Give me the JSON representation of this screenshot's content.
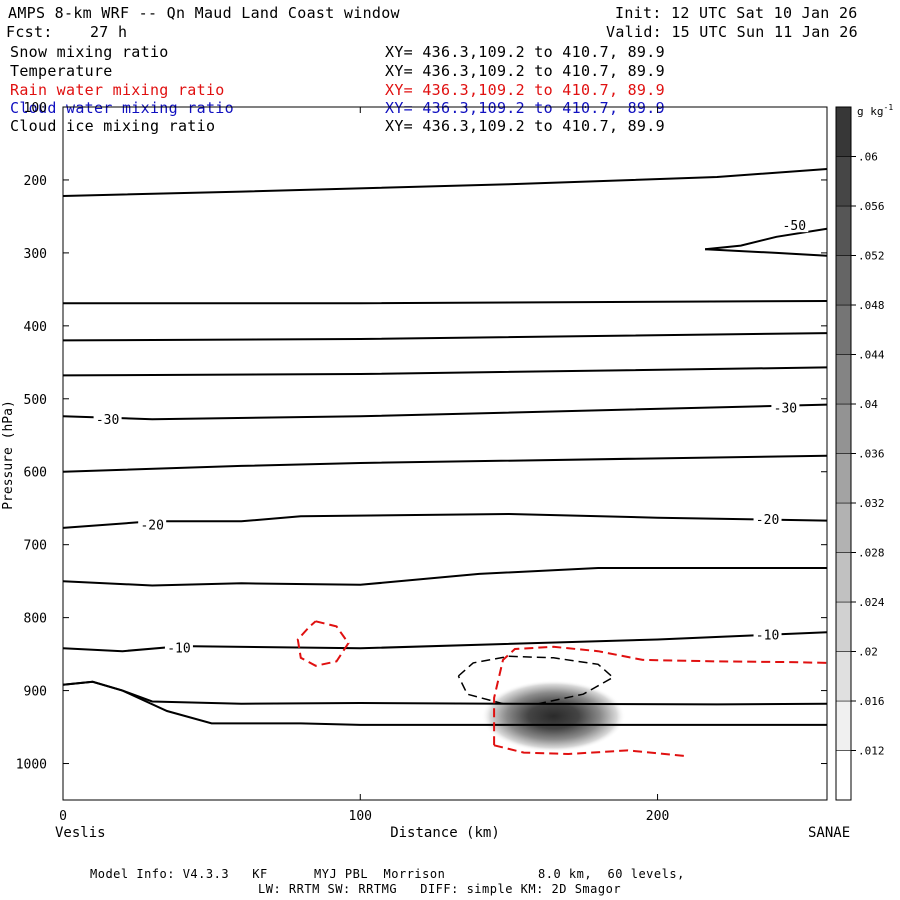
{
  "header": {
    "title": "AMPS 8-km WRF -- Qn Maud Land Coast window",
    "init": "Init: 12 UTC Sat 10 Jan 26",
    "fcst": "Fcst:    27 h",
    "valid": "Valid: 15 UTC Sun 11 Jan 26"
  },
  "fields": [
    {
      "name": "Snow mixing ratio",
      "xy": "XY= 436.3,109.2 to 410.7, 89.9",
      "color": "#000000"
    },
    {
      "name": "Temperature",
      "xy": "XY= 436.3,109.2 to 410.7, 89.9",
      "color": "#000000"
    },
    {
      "name": "Rain water mixing ratio",
      "xy": "XY= 436.3,109.2 to 410.7, 89.9",
      "color": "#e01010"
    },
    {
      "name": "Cloud water mixing ratio",
      "xy": "XY= 436.3,109.2 to 410.7, 89.9",
      "color": "#1010c0"
    },
    {
      "name": "Cloud ice mixing ratio",
      "xy": "XY= 436.3,109.2 to 410.7, 89.9",
      "color": "#000000"
    }
  ],
  "footer": {
    "line1": "Model Info: V4.3.3   KF      MYJ PBL  Morrison            8.0 km,  60 levels,",
    "line2": "LW: RRTM SW: RRTMG   DIFF: simple KM: 2D Smagor"
  },
  "chart_data": {
    "type": "contour cross-section",
    "xlabel": "Distance (km)",
    "ylabel": "Pressure (hPa)",
    "xlim": [
      0,
      257
    ],
    "ylim": [
      1050,
      100
    ],
    "x_ticks": [
      0,
      100,
      200
    ],
    "y_ticks": [
      100,
      200,
      300,
      400,
      500,
      600,
      700,
      800,
      900,
      1000
    ],
    "x_endpoints": {
      "left": "Veslis",
      "right": "SANAE"
    },
    "colorbar": {
      "unit": "g kg",
      "unit_exp": "-1",
      "levels": [
        ".012",
        ".016",
        ".02",
        ".024",
        ".028",
        ".032",
        ".036",
        ".04",
        ".044",
        ".048",
        ".052",
        ".056",
        ".06"
      ]
    },
    "temperature_contour_labels": [
      {
        "text": "-50",
        "x": 246,
        "p": 262
      },
      {
        "text": "-30",
        "x": 15,
        "p": 528
      },
      {
        "text": "-30",
        "x": 243,
        "p": 512
      },
      {
        "text": "-20",
        "x": 30,
        "p": 672
      },
      {
        "text": "-20",
        "x": 237,
        "p": 665
      },
      {
        "text": "-10",
        "x": 39,
        "p": 841
      },
      {
        "text": "-10",
        "x": 237,
        "p": 823
      }
    ],
    "temperature_lines": [
      [
        [
          0,
          222
        ],
        [
          60,
          216
        ],
        [
          150,
          206
        ],
        [
          220,
          196
        ],
        [
          257,
          185
        ]
      ],
      [
        [
          216,
          295
        ],
        [
          228,
          290
        ],
        [
          240,
          278
        ],
        [
          257,
          267
        ]
      ],
      [
        [
          216,
          295
        ],
        [
          240,
          300
        ],
        [
          257,
          304
        ]
      ],
      [
        [
          0,
          369
        ],
        [
          100,
          369
        ],
        [
          257,
          366
        ]
      ],
      [
        [
          0,
          420
        ],
        [
          100,
          418
        ],
        [
          257,
          410
        ]
      ],
      [
        [
          0,
          468
        ],
        [
          100,
          466
        ],
        [
          257,
          457
        ]
      ],
      [
        [
          0,
          524
        ],
        [
          30,
          528
        ],
        [
          100,
          524
        ],
        [
          257,
          508
        ]
      ],
      [
        [
          0,
          600
        ],
        [
          60,
          592
        ],
        [
          100,
          588
        ],
        [
          257,
          578
        ]
      ],
      [
        [
          0,
          677
        ],
        [
          30,
          668
        ],
        [
          60,
          668
        ],
        [
          80,
          661
        ],
        [
          150,
          658
        ],
        [
          200,
          663
        ],
        [
          257,
          667
        ]
      ],
      [
        [
          0,
          750
        ],
        [
          30,
          756
        ],
        [
          60,
          753
        ],
        [
          100,
          755
        ],
        [
          140,
          740
        ],
        [
          180,
          732
        ],
        [
          257,
          732
        ]
      ],
      [
        [
          0,
          842
        ],
        [
          20,
          846
        ],
        [
          40,
          839
        ],
        [
          100,
          842
        ],
        [
          200,
          830
        ],
        [
          257,
          820
        ]
      ],
      [
        [
          0,
          892
        ],
        [
          10,
          888
        ],
        [
          20,
          900
        ],
        [
          30,
          915
        ],
        [
          60,
          918
        ],
        [
          100,
          917
        ],
        [
          150,
          918
        ],
        [
          220,
          919
        ],
        [
          257,
          918
        ]
      ],
      [
        [
          0,
          892
        ],
        [
          10,
          888
        ],
        [
          20,
          900
        ],
        [
          35,
          928
        ],
        [
          50,
          945
        ],
        [
          80,
          945
        ],
        [
          100,
          947
        ],
        [
          140,
          947
        ],
        [
          200,
          947
        ],
        [
          257,
          947
        ]
      ]
    ],
    "rain_water_contours": [
      [
        [
          85,
          805
        ],
        [
          92,
          812
        ],
        [
          96,
          835
        ],
        [
          92,
          860
        ],
        [
          85,
          866
        ],
        [
          80,
          855
        ],
        [
          79,
          830
        ],
        [
          83,
          812
        ],
        [
          85,
          805
        ]
      ],
      [
        [
          145,
          975
        ],
        [
          145,
          910
        ],
        [
          148,
          858
        ],
        [
          152,
          843
        ],
        [
          165,
          840
        ],
        [
          180,
          846
        ],
        [
          195,
          858
        ],
        [
          220,
          860
        ],
        [
          245,
          861
        ],
        [
          257,
          862
        ]
      ],
      [
        [
          145,
          975
        ],
        [
          155,
          985
        ],
        [
          170,
          987
        ],
        [
          190,
          982
        ],
        [
          210,
          990
        ]
      ]
    ],
    "cloud_ice_contours": [
      [
        [
          133,
          880
        ],
        [
          138,
          862
        ],
        [
          150,
          853
        ],
        [
          165,
          855
        ],
        [
          180,
          864
        ],
        [
          185,
          882
        ],
        [
          175,
          905
        ],
        [
          160,
          918
        ],
        [
          148,
          918
        ],
        [
          136,
          905
        ],
        [
          133,
          880
        ]
      ]
    ],
    "snow_maximum": {
      "x": 165,
      "p": 935,
      "value": 0.06
    }
  }
}
